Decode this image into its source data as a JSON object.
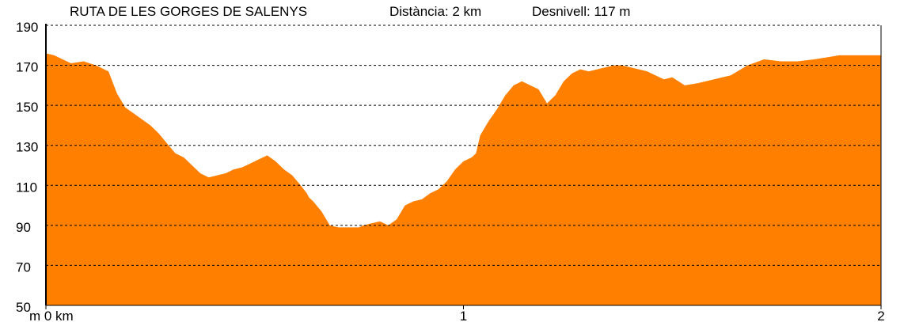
{
  "header": {
    "route": "RUTA DE LES GORGES DE SALENYS",
    "distance": "Distància: 2 km",
    "elevation_gain": "Desnivell: 117 m"
  },
  "chart_data": {
    "type": "area",
    "title": "RUTA DE LES GORGES DE SALENYS",
    "xlabel": "km",
    "ylabel": "m",
    "xlim": [
      0,
      2
    ],
    "ylim": [
      50,
      190
    ],
    "x_ticks": [
      0,
      1,
      2
    ],
    "x_tick_labels": [
      "m 0 km",
      "1",
      "2"
    ],
    "y_ticks": [
      50,
      70,
      90,
      110,
      130,
      150,
      170,
      190
    ],
    "grid": true,
    "fill_color": "#ff8000",
    "series": [
      {
        "x": [
          0,
          0.02,
          0.04,
          0.06,
          0.09,
          0.12,
          0.15,
          0.17,
          0.19,
          0.21,
          0.23,
          0.25,
          0.27,
          0.29,
          0.31,
          0.33,
          0.35,
          0.37,
          0.39,
          0.41,
          0.43,
          0.45,
          0.47,
          0.49,
          0.51,
          0.53,
          0.55,
          0.57,
          0.59,
          0.61,
          0.625,
          0.63,
          0.64,
          0.66,
          0.68,
          0.7,
          0.71,
          0.73,
          0.74,
          0.75,
          0.76,
          0.78,
          0.8,
          0.82,
          0.84,
          0.86,
          0.88,
          0.9,
          0.92,
          0.94,
          0.95,
          0.96,
          0.97,
          0.98,
          0.99,
          1.0,
          1.02,
          1.03,
          1.04,
          1.06,
          1.08,
          1.1,
          1.12,
          1.14,
          1.16,
          1.18,
          1.2,
          1.22,
          1.24,
          1.26,
          1.28,
          1.3,
          1.32,
          1.34,
          1.36,
          1.38,
          1.4,
          1.42,
          1.44,
          1.46,
          1.48,
          1.5,
          1.53,
          1.56,
          1.6,
          1.64,
          1.68,
          1.72,
          1.76,
          1.8,
          1.84,
          1.87,
          1.9,
          1.92,
          1.94,
          1.96,
          1.98,
          2.0
        ],
        "y": [
          176,
          175,
          173,
          171,
          172,
          170,
          167,
          156,
          149,
          146,
          143,
          140,
          136,
          131,
          126,
          124,
          120,
          116,
          114,
          115,
          116,
          118,
          119,
          121,
          123,
          125,
          122,
          118,
          115,
          110,
          106,
          104,
          102,
          97,
          90,
          89,
          89,
          89,
          89,
          89,
          90,
          91,
          92,
          90,
          93,
          100,
          102,
          103,
          106,
          108,
          110,
          112,
          115,
          118,
          120,
          122,
          124,
          126,
          135,
          142,
          148,
          155,
          160,
          162,
          160,
          158,
          151,
          155,
          162,
          166,
          168,
          167,
          168,
          169,
          170,
          170,
          169,
          168,
          167,
          165,
          163,
          164,
          160,
          161,
          163,
          165,
          170,
          173,
          172,
          172,
          173,
          174,
          175,
          175,
          175,
          175,
          175,
          175
        ]
      }
    ]
  }
}
